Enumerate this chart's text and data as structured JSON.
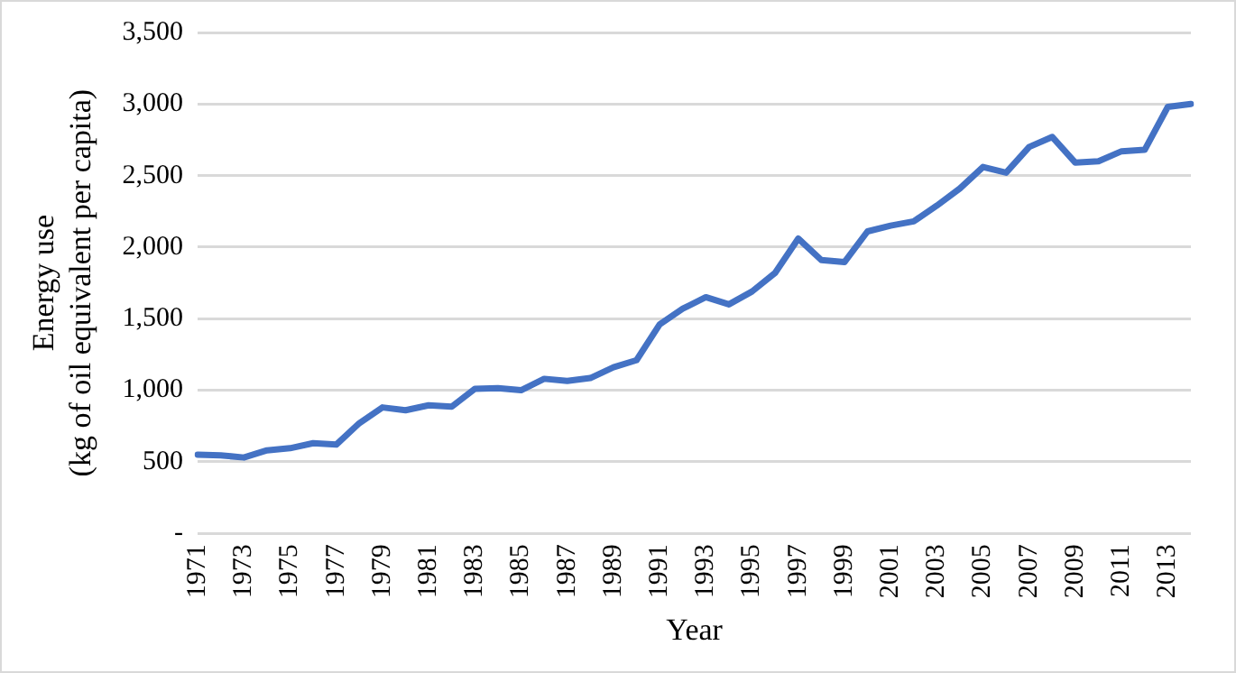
{
  "chart_data": {
    "type": "line",
    "xlabel": "Year",
    "ylabel": "Energy use\n(kg of oil equivalent per capita)",
    "categories": [
      "1971",
      null,
      "1973",
      null,
      "1975",
      null,
      "1977",
      null,
      "1979",
      null,
      "1981",
      null,
      "1983",
      null,
      "1985",
      null,
      "1987",
      null,
      "1989",
      null,
      "1991",
      null,
      "1993",
      null,
      "1995",
      null,
      "1997",
      null,
      "1999",
      null,
      "2001",
      null,
      "2003",
      null,
      "2005",
      null,
      "2007",
      null,
      "2009",
      null,
      "2011",
      null,
      "2013",
      null
    ],
    "series": [
      {
        "color": "#4472c4",
        "values": [
          550,
          545,
          530,
          580,
          595,
          630,
          620,
          770,
          880,
          860,
          895,
          885,
          1010,
          1015,
          1000,
          1080,
          1065,
          1085,
          1160,
          1210,
          1460,
          1570,
          1650,
          1600,
          1690,
          1820,
          2060,
          1910,
          1895,
          2110,
          2150,
          2180,
          2290,
          2410,
          2560,
          2520,
          2700,
          2770,
          2590,
          2600,
          2670,
          2680,
          2980,
          3000
        ]
      }
    ],
    "ylim": [
      0,
      3500
    ],
    "yticks": [
      {
        "value": 0,
        "label": "-"
      },
      {
        "value": 500,
        "label": "500"
      },
      {
        "value": 1000,
        "label": "1,000"
      },
      {
        "value": 1500,
        "label": "1,500"
      },
      {
        "value": 2000,
        "label": "2,000"
      },
      {
        "value": 2500,
        "label": "2,500"
      },
      {
        "value": 3000,
        "label": "3,000"
      },
      {
        "value": 3500,
        "label": "3,500"
      }
    ],
    "grid": "y",
    "legend": false,
    "marker": "none",
    "line_style": "solid"
  }
}
